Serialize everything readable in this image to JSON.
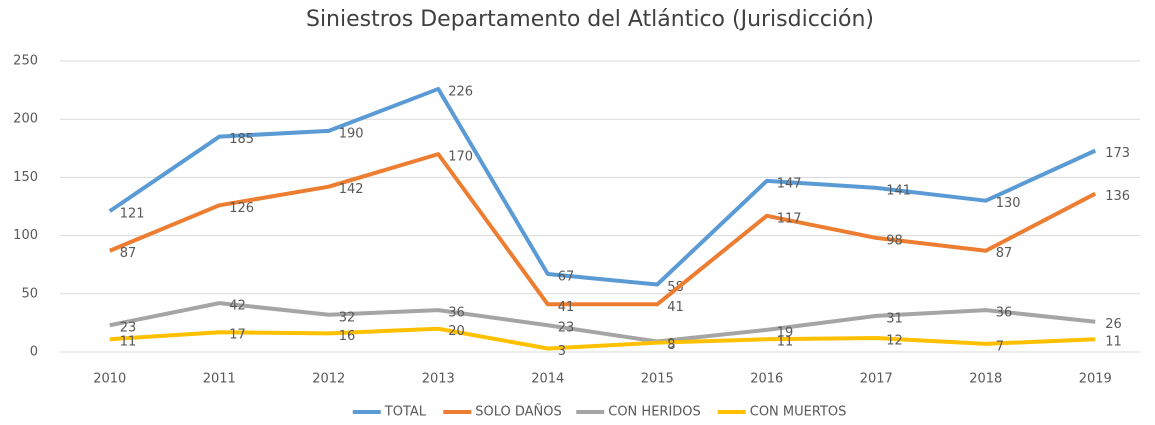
{
  "chart_data": {
    "type": "line",
    "title": "Siniestros Departamento del Atlántico (Jurisdicción)",
    "categories": [
      "2010",
      "2011",
      "2012",
      "2013",
      "2014",
      "2015",
      "2016",
      "2017",
      "2018",
      "2019"
    ],
    "series": [
      {
        "name": "TOTAL",
        "color": "#5b9bd5",
        "values": [
          121,
          185,
          190,
          226,
          67,
          58,
          147,
          141,
          130,
          173
        ]
      },
      {
        "name": "SOLO DAÑOS",
        "color": "#ed7d31",
        "values": [
          87,
          126,
          142,
          170,
          41,
          41,
          117,
          98,
          87,
          136
        ]
      },
      {
        "name": "CON HERIDOS",
        "color": "#a5a5a5",
        "values": [
          23,
          42,
          32,
          36,
          23,
          9,
          19,
          31,
          36,
          26
        ]
      },
      {
        "name": "CON MUERTOS",
        "color": "#ffc000",
        "values": [
          11,
          17,
          16,
          20,
          3,
          8,
          11,
          12,
          7,
          11
        ]
      }
    ],
    "ylim": [
      0,
      250
    ],
    "yticks": [
      0,
      50,
      100,
      150,
      200,
      250
    ],
    "grid": true,
    "legend": "bottom"
  }
}
